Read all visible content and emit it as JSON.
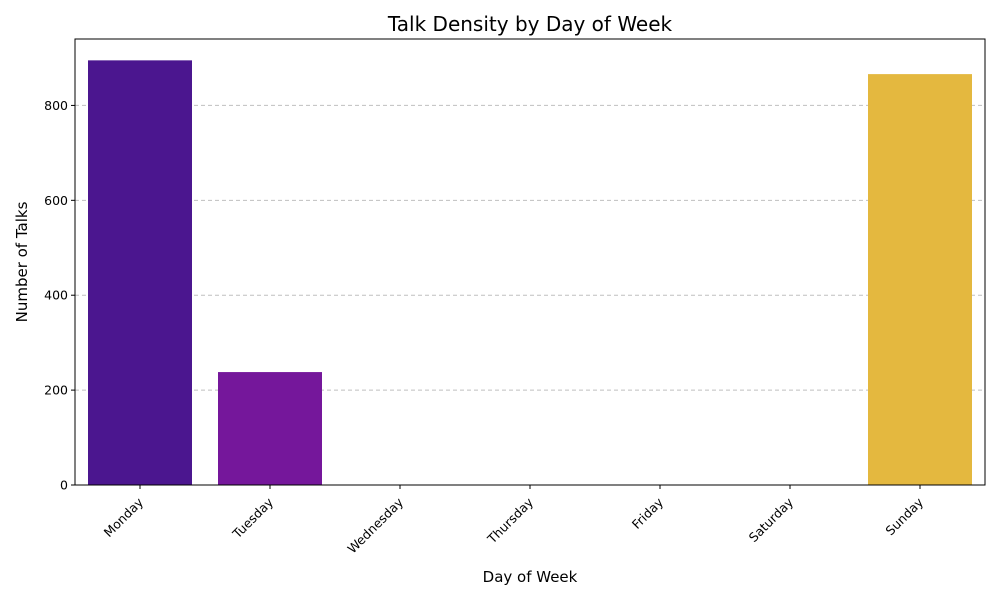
{
  "chart_data": {
    "type": "bar",
    "title": "Talk Density by Day of Week",
    "xlabel": "Day of Week",
    "ylabel": "Number of Talks",
    "categories": [
      "Monday",
      "Tuesday",
      "Wednesday",
      "Thursday",
      "Friday",
      "Saturday",
      "Sunday"
    ],
    "values": [
      895,
      238,
      0,
      0,
      0,
      0,
      866
    ],
    "colors": [
      "#4b168f",
      "#75179b",
      "#a1298a",
      "#c5476c",
      "#e26a4c",
      "#f1902f",
      "#e4b83f"
    ],
    "ylim": [
      0,
      940
    ],
    "yticks": [
      0,
      200,
      400,
      600,
      800
    ],
    "grid": "horizontal dashed",
    "legend": "none"
  }
}
